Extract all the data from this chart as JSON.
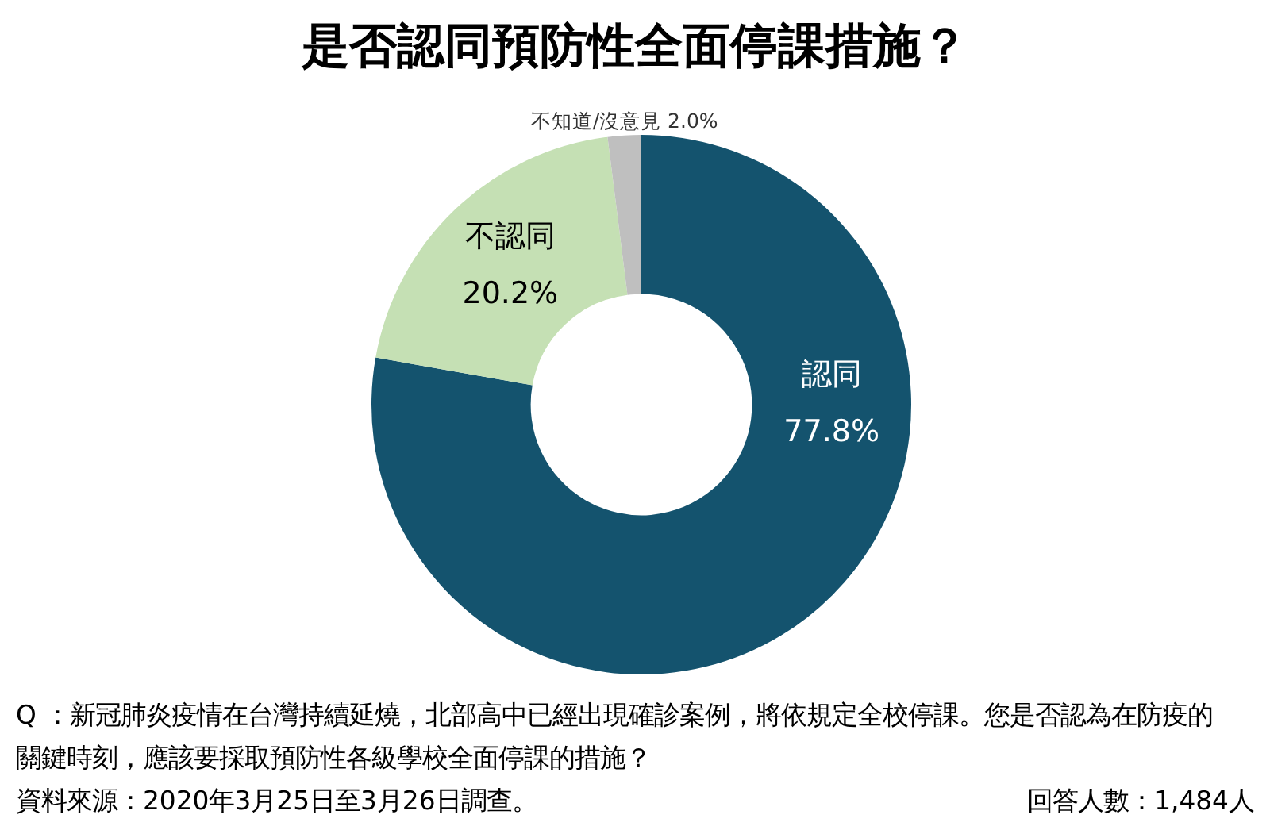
{
  "chart_data": {
    "type": "donut",
    "title": "是否認同預防性全面停課措施？",
    "categories": [
      "認同",
      "不認同",
      "不知道/沒意見"
    ],
    "values": [
      77.8,
      20.2,
      2.0
    ],
    "colors": [
      "#14536e",
      "#c5e0b4",
      "#bfbfbf"
    ],
    "value_labels": [
      "77.8%",
      "20.2%",
      "2.0%"
    ],
    "annotations": [
      "Q ：新冠肺炎疫情在台灣持續延燒，北部高中已經出現確診案例，將依規定全校停課。您是否認為在防疫的關鍵時刻，應該要採取預防性各級學校全面停課的措施？",
      "資料來源：2020年3月25日至3月26日調查。",
      "回答人數：1,484人"
    ]
  }
}
